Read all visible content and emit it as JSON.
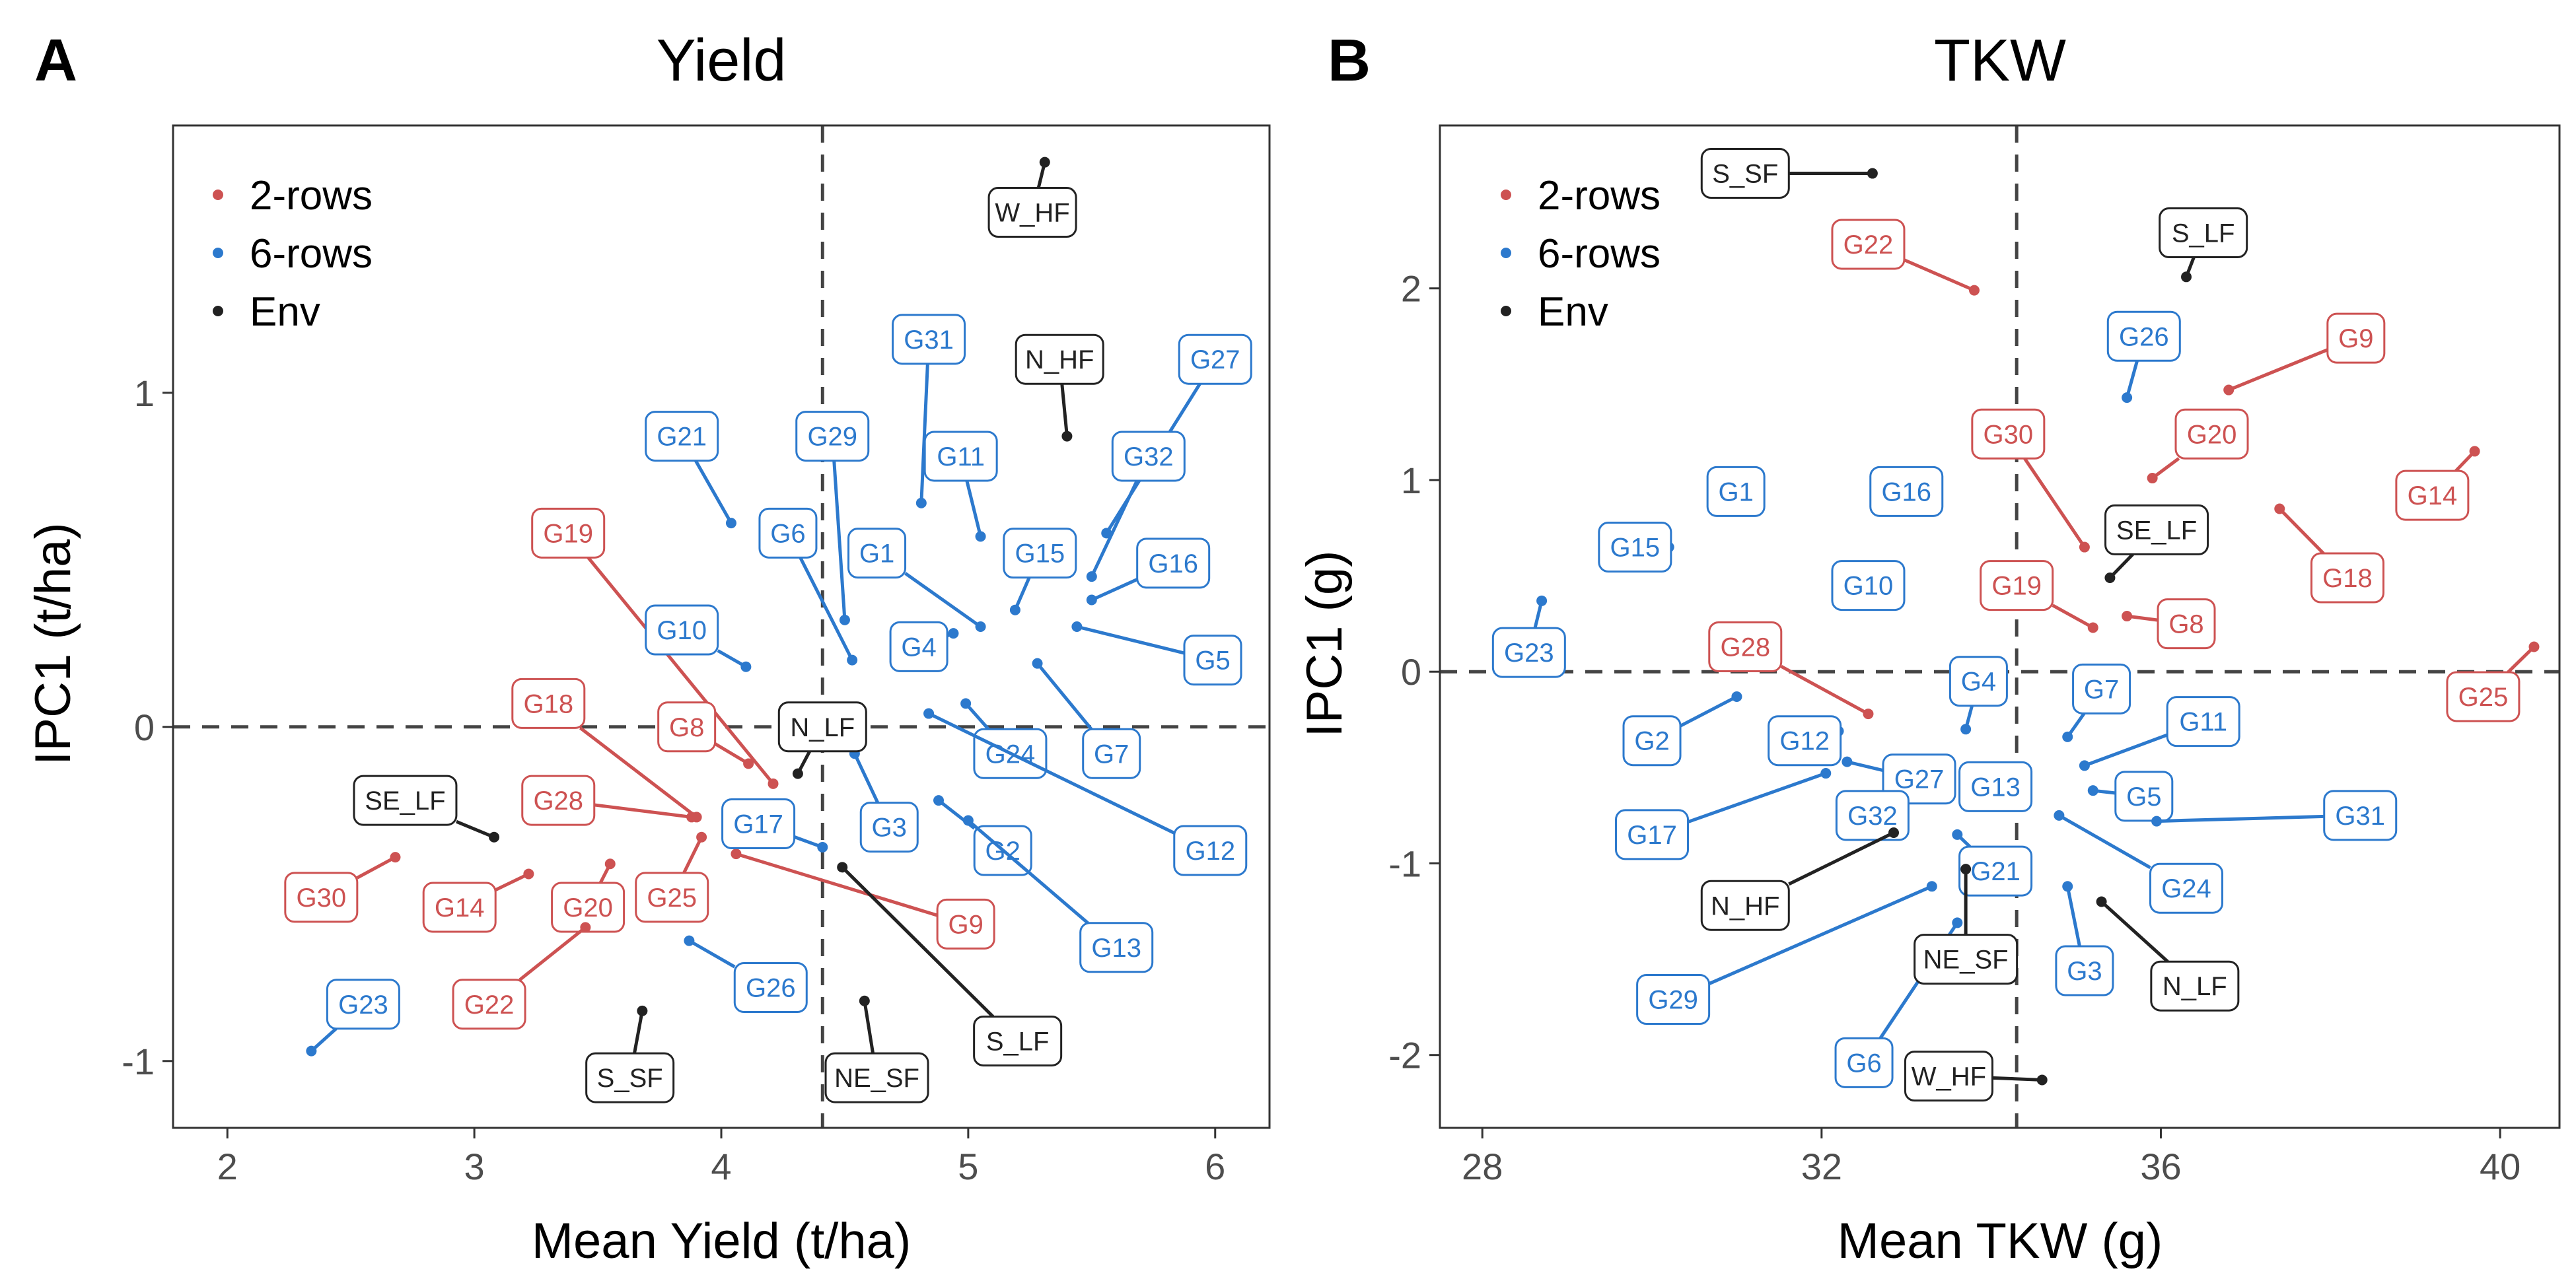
{
  "colors": {
    "2-rows": "#cd5252",
    "6-rows": "#2c79cd",
    "Env": "#222222"
  },
  "chart_data": [
    {
      "type": "scatter",
      "panel": "A",
      "title": "Yield",
      "xlabel": "Mean Yield (t/ha)",
      "ylabel": "IPC1 (t/ha)",
      "xlim": [
        1.78,
        6.22
      ],
      "ylim": [
        -1.2,
        1.8
      ],
      "xticks": [
        2,
        3,
        4,
        5,
        6
      ],
      "yticks": [
        -1,
        0,
        1
      ],
      "ref_x": 4.41,
      "ref_y": 0,
      "legend": [
        "2-rows",
        "6-rows",
        "Env"
      ],
      "legend_position": "top-left",
      "points": [
        {
          "name": "G19",
          "group": "2-rows",
          "x": 4.21,
          "y": -0.17,
          "lx": 3.38,
          "ly": 0.58
        },
        {
          "name": "G18",
          "group": "2-rows",
          "x": 3.9,
          "y": -0.27,
          "lx": 3.3,
          "ly": 0.07
        },
        {
          "name": "G8",
          "group": "2-rows",
          "x": 4.11,
          "y": -0.11,
          "lx": 3.86,
          "ly": 0.0
        },
        {
          "name": "G28",
          "group": "2-rows",
          "x": 3.88,
          "y": -0.27,
          "lx": 3.34,
          "ly": -0.22
        },
        {
          "name": "G30",
          "group": "2-rows",
          "x": 2.68,
          "y": -0.39,
          "lx": 2.38,
          "ly": -0.51
        },
        {
          "name": "G14",
          "group": "2-rows",
          "x": 3.22,
          "y": -0.44,
          "lx": 2.94,
          "ly": -0.54
        },
        {
          "name": "G20",
          "group": "2-rows",
          "x": 3.55,
          "y": -0.41,
          "lx": 3.46,
          "ly": -0.54
        },
        {
          "name": "G25",
          "group": "2-rows",
          "x": 3.92,
          "y": -0.33,
          "lx": 3.8,
          "ly": -0.51
        },
        {
          "name": "G22",
          "group": "2-rows",
          "x": 3.45,
          "y": -0.6,
          "lx": 3.06,
          "ly": -0.83
        },
        {
          "name": "G9",
          "group": "2-rows",
          "x": 4.06,
          "y": -0.38,
          "lx": 4.99,
          "ly": -0.59
        },
        {
          "name": "G21",
          "group": "6-rows",
          "x": 4.04,
          "y": 0.61,
          "lx": 3.84,
          "ly": 0.87
        },
        {
          "name": "G29",
          "group": "6-rows",
          "x": 4.5,
          "y": 0.32,
          "lx": 4.45,
          "ly": 0.87
        },
        {
          "name": "G31",
          "group": "6-rows",
          "x": 4.81,
          "y": 0.67,
          "lx": 4.84,
          "ly": 1.16
        },
        {
          "name": "G11",
          "group": "6-rows",
          "x": 5.05,
          "y": 0.57,
          "lx": 4.97,
          "ly": 0.81
        },
        {
          "name": "G27",
          "group": "6-rows",
          "x": 5.56,
          "y": 0.58,
          "lx": 6.0,
          "ly": 1.1
        },
        {
          "name": "G32",
          "group": "6-rows",
          "x": 5.5,
          "y": 0.45,
          "lx": 5.73,
          "ly": 0.81
        },
        {
          "name": "G6",
          "group": "6-rows",
          "x": 4.53,
          "y": 0.2,
          "lx": 4.27,
          "ly": 0.58
        },
        {
          "name": "G1",
          "group": "6-rows",
          "x": 5.05,
          "y": 0.3,
          "lx": 4.63,
          "ly": 0.52
        },
        {
          "name": "G15",
          "group": "6-rows",
          "x": 5.19,
          "y": 0.35,
          "lx": 5.29,
          "ly": 0.52
        },
        {
          "name": "G16",
          "group": "6-rows",
          "x": 5.5,
          "y": 0.38,
          "lx": 5.83,
          "ly": 0.49
        },
        {
          "name": "G10",
          "group": "6-rows",
          "x": 4.1,
          "y": 0.18,
          "lx": 3.84,
          "ly": 0.29
        },
        {
          "name": "G4",
          "group": "6-rows",
          "x": 4.94,
          "y": 0.28,
          "lx": 4.8,
          "ly": 0.24
        },
        {
          "name": "G5",
          "group": "6-rows",
          "x": 5.44,
          "y": 0.3,
          "lx": 5.99,
          "ly": 0.2
        },
        {
          "name": "G7",
          "group": "6-rows",
          "x": 5.28,
          "y": 0.19,
          "lx": 5.58,
          "ly": -0.08
        },
        {
          "name": "G24",
          "group": "6-rows",
          "x": 4.99,
          "y": 0.07,
          "lx": 5.17,
          "ly": -0.08
        },
        {
          "name": "G12",
          "group": "6-rows",
          "x": 4.84,
          "y": 0.04,
          "lx": 5.98,
          "ly": -0.37
        },
        {
          "name": "G17",
          "group": "6-rows",
          "x": 4.41,
          "y": -0.36,
          "lx": 4.15,
          "ly": -0.29
        },
        {
          "name": "G3",
          "group": "6-rows",
          "x": 4.54,
          "y": -0.08,
          "lx": 4.68,
          "ly": -0.3
        },
        {
          "name": "G2",
          "group": "6-rows",
          "x": 4.88,
          "y": -0.22,
          "lx": 5.14,
          "ly": -0.37
        },
        {
          "name": "G13",
          "group": "6-rows",
          "x": 5.0,
          "y": -0.28,
          "lx": 5.6,
          "ly": -0.66
        },
        {
          "name": "G26",
          "group": "6-rows",
          "x": 3.87,
          "y": -0.64,
          "lx": 4.2,
          "ly": -0.78
        },
        {
          "name": "G23",
          "group": "6-rows",
          "x": 2.34,
          "y": -0.97,
          "lx": 2.55,
          "ly": -0.83
        },
        {
          "name": "W_HF",
          "group": "Env",
          "x": 5.31,
          "y": 1.69,
          "lx": 5.26,
          "ly": 1.54
        },
        {
          "name": "N_HF",
          "group": "Env",
          "x": 5.4,
          "y": 0.87,
          "lx": 5.37,
          "ly": 1.1
        },
        {
          "name": "N_LF",
          "group": "Env",
          "x": 4.31,
          "y": -0.14,
          "lx": 4.41,
          "ly": 0.0
        },
        {
          "name": "SE_LF",
          "group": "Env",
          "x": 3.08,
          "y": -0.33,
          "lx": 2.72,
          "ly": -0.22
        },
        {
          "name": "S_LF",
          "group": "Env",
          "x": 4.49,
          "y": -0.42,
          "lx": 5.2,
          "ly": -0.94
        },
        {
          "name": "S_SF",
          "group": "Env",
          "x": 3.68,
          "y": -0.85,
          "lx": 3.63,
          "ly": -1.05
        },
        {
          "name": "NE_SF",
          "group": "Env",
          "x": 4.58,
          "y": -0.82,
          "lx": 4.63,
          "ly": -1.05
        }
      ]
    },
    {
      "type": "scatter",
      "panel": "B",
      "title": "TKW",
      "xlabel": "Mean TKW (g)",
      "ylabel": "IPC1 (g)",
      "xlim": [
        27.5,
        40.7
      ],
      "ylim": [
        -2.38,
        2.85
      ],
      "xticks": [
        28,
        32,
        36,
        40
      ],
      "yticks": [
        -2,
        -1,
        0,
        1,
        2
      ],
      "ref_x": 34.3,
      "ref_y": 0,
      "legend": [
        "2-rows",
        "6-rows",
        "Env"
      ],
      "legend_position": "top-left",
      "points": [
        {
          "name": "G22",
          "group": "2-rows",
          "x": 33.8,
          "y": 1.99,
          "lx": 32.55,
          "ly": 2.23
        },
        {
          "name": "G9",
          "group": "2-rows",
          "x": 36.8,
          "y": 1.47,
          "lx": 38.3,
          "ly": 1.74
        },
        {
          "name": "G20",
          "group": "2-rows",
          "x": 35.9,
          "y": 1.01,
          "lx": 36.6,
          "ly": 1.24
        },
        {
          "name": "G30",
          "group": "2-rows",
          "x": 35.1,
          "y": 0.65,
          "lx": 34.2,
          "ly": 1.24
        },
        {
          "name": "G14",
          "group": "2-rows",
          "x": 39.7,
          "y": 1.15,
          "lx": 39.2,
          "ly": 0.92
        },
        {
          "name": "G18",
          "group": "2-rows",
          "x": 37.4,
          "y": 0.85,
          "lx": 38.2,
          "ly": 0.49
        },
        {
          "name": "G19",
          "group": "2-rows",
          "x": 35.2,
          "y": 0.23,
          "lx": 34.3,
          "ly": 0.45
        },
        {
          "name": "G8",
          "group": "2-rows",
          "x": 35.6,
          "y": 0.29,
          "lx": 36.3,
          "ly": 0.25
        },
        {
          "name": "G28",
          "group": "2-rows",
          "x": 32.55,
          "y": -0.22,
          "lx": 31.1,
          "ly": 0.13
        },
        {
          "name": "G25",
          "group": "2-rows",
          "x": 40.4,
          "y": 0.13,
          "lx": 39.8,
          "ly": -0.13
        },
        {
          "name": "G26",
          "group": "6-rows",
          "x": 35.6,
          "y": 1.43,
          "lx": 35.8,
          "ly": 1.75
        },
        {
          "name": "G1",
          "group": "6-rows",
          "x": 30.9,
          "y": 0.97,
          "lx": 30.99,
          "ly": 0.94
        },
        {
          "name": "G16",
          "group": "6-rows",
          "x": 33.05,
          "y": 0.93,
          "lx": 33.0,
          "ly": 0.94
        },
        {
          "name": "G15",
          "group": "6-rows",
          "x": 30.2,
          "y": 0.65,
          "lx": 29.8,
          "ly": 0.65
        },
        {
          "name": "G10",
          "group": "6-rows",
          "x": 32.55,
          "y": 0.45,
          "lx": 32.55,
          "ly": 0.45
        },
        {
          "name": "G23",
          "group": "6-rows",
          "x": 28.7,
          "y": 0.37,
          "lx": 28.55,
          "ly": 0.1
        },
        {
          "name": "G4",
          "group": "6-rows",
          "x": 33.7,
          "y": -0.3,
          "lx": 33.85,
          "ly": -0.05
        },
        {
          "name": "G7",
          "group": "6-rows",
          "x": 34.9,
          "y": -0.34,
          "lx": 35.3,
          "ly": -0.09
        },
        {
          "name": "G2",
          "group": "6-rows",
          "x": 31.0,
          "y": -0.13,
          "lx": 30.0,
          "ly": -0.36
        },
        {
          "name": "G12",
          "group": "6-rows",
          "x": 32.2,
          "y": -0.31,
          "lx": 31.8,
          "ly": -0.36
        },
        {
          "name": "G11",
          "group": "6-rows",
          "x": 35.1,
          "y": -0.49,
          "lx": 36.5,
          "ly": -0.26
        },
        {
          "name": "G27",
          "group": "6-rows",
          "x": 32.3,
          "y": -0.47,
          "lx": 33.15,
          "ly": -0.56
        },
        {
          "name": "G13",
          "group": "6-rows",
          "x": 33.8,
          "y": -0.65,
          "lx": 34.05,
          "ly": -0.6
        },
        {
          "name": "G5",
          "group": "6-rows",
          "x": 35.2,
          "y": -0.62,
          "lx": 35.8,
          "ly": -0.65
        },
        {
          "name": "G17",
          "group": "6-rows",
          "x": 32.05,
          "y": -0.53,
          "lx": 30.0,
          "ly": -0.85
        },
        {
          "name": "G32",
          "group": "6-rows",
          "x": 32.9,
          "y": -0.72,
          "lx": 32.6,
          "ly": -0.75
        },
        {
          "name": "G31",
          "group": "6-rows",
          "x": 35.95,
          "y": -0.78,
          "lx": 38.35,
          "ly": -0.75
        },
        {
          "name": "G21",
          "group": "6-rows",
          "x": 33.6,
          "y": -0.85,
          "lx": 34.05,
          "ly": -1.04
        },
        {
          "name": "G24",
          "group": "6-rows",
          "x": 34.8,
          "y": -0.75,
          "lx": 36.3,
          "ly": -1.13
        },
        {
          "name": "G29",
          "group": "6-rows",
          "x": 33.3,
          "y": -1.12,
          "lx": 30.25,
          "ly": -1.71
        },
        {
          "name": "G3",
          "group": "6-rows",
          "x": 34.9,
          "y": -1.12,
          "lx": 35.1,
          "ly": -1.56
        },
        {
          "name": "G6",
          "group": "6-rows",
          "x": 33.6,
          "y": -1.31,
          "lx": 32.5,
          "ly": -2.04
        },
        {
          "name": "S_SF",
          "group": "Env",
          "x": 32.6,
          "y": 2.6,
          "lx": 31.1,
          "ly": 2.6
        },
        {
          "name": "S_LF",
          "group": "Env",
          "x": 36.3,
          "y": 2.06,
          "lx": 36.5,
          "ly": 2.29
        },
        {
          "name": "SE_LF",
          "group": "Env",
          "x": 35.4,
          "y": 0.49,
          "lx": 35.95,
          "ly": 0.74
        },
        {
          "name": "N_HF",
          "group": "Env",
          "x": 32.85,
          "y": -0.84,
          "lx": 31.1,
          "ly": -1.22
        },
        {
          "name": "NE_SF",
          "group": "Env",
          "x": 33.7,
          "y": -1.03,
          "lx": 33.7,
          "ly": -1.5
        },
        {
          "name": "N_LF",
          "group": "Env",
          "x": 35.3,
          "y": -1.2,
          "lx": 36.4,
          "ly": -1.64
        },
        {
          "name": "W_HF",
          "group": "Env",
          "x": 34.6,
          "y": -2.13,
          "lx": 33.5,
          "ly": -2.11
        }
      ]
    }
  ]
}
